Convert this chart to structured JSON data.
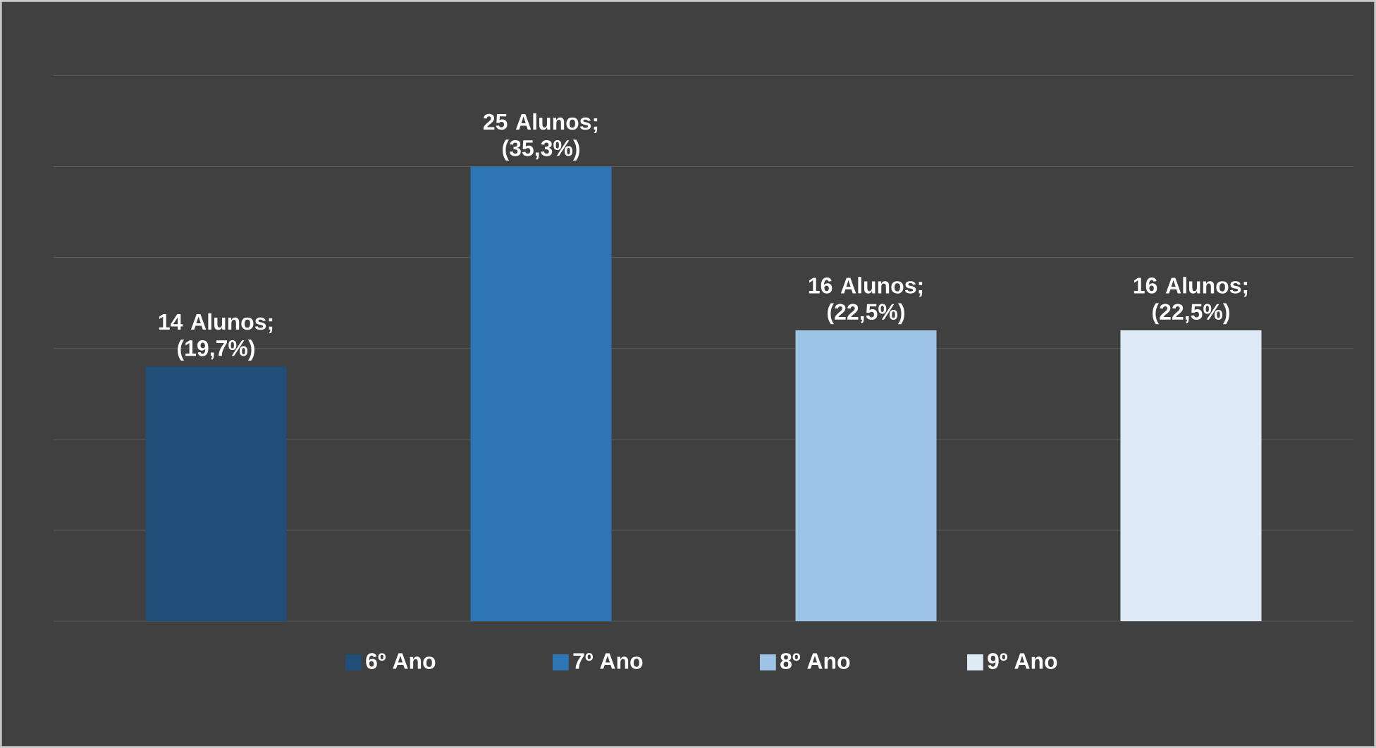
{
  "chart_data": {
    "type": "bar",
    "categories": [
      null,
      null,
      null,
      null
    ],
    "series": [
      {
        "name": "6º Ano",
        "color": "#1f4e79",
        "values": [
          14,
          null,
          null,
          null
        ],
        "value_labels": [
          "14 Alunos; (19,7%)",
          null,
          null,
          null
        ]
      },
      {
        "name": "7º Ano",
        "color": "#2e75b6",
        "values": [
          null,
          25,
          null,
          null
        ],
        "value_labels": [
          null,
          "25 Alunos; (35,3%)",
          null,
          null
        ]
      },
      {
        "name": "8º Ano",
        "color": "#9dc3e6",
        "values": [
          null,
          null,
          16,
          null
        ],
        "value_labels": [
          null,
          null,
          "16 Alunos; (22,5%)",
          null
        ]
      },
      {
        "name": "9º Ano",
        "color": "#deebf7",
        "values": [
          null,
          null,
          null,
          16
        ],
        "value_labels": [
          null,
          null,
          null,
          "16 Alunos; (22,5%)"
        ]
      }
    ],
    "stacked": true,
    "grid": "y",
    "legend": "bottom",
    "tick_labels": false
  }
}
